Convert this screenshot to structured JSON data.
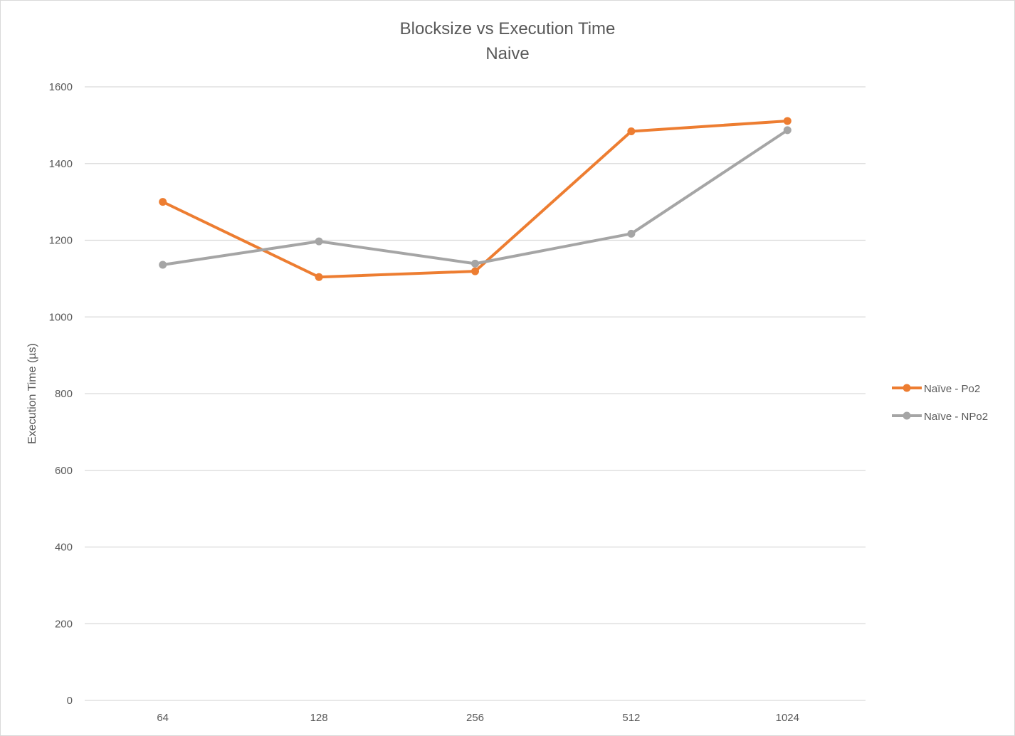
{
  "chart_data": {
    "type": "line",
    "title": "Blocksize vs Execution Time",
    "subtitle": "Naive",
    "xlabel": "",
    "ylabel": "Execution Time (µs)",
    "categories": [
      "64",
      "128",
      "256",
      "512",
      "1024"
    ],
    "ylim": [
      0,
      1600
    ],
    "yticks": [
      0,
      200,
      400,
      600,
      800,
      1000,
      1200,
      1400,
      1600
    ],
    "grid": true,
    "legend_position": "right",
    "series": [
      {
        "name": "Naïve - Po2",
        "color": "#ed7d31",
        "values": [
          1300,
          1104,
          1119,
          1484,
          1511
        ]
      },
      {
        "name": "Naïve - NPo2",
        "color": "#a5a5a5",
        "values": [
          1136,
          1197,
          1139,
          1217,
          1487
        ]
      }
    ]
  }
}
